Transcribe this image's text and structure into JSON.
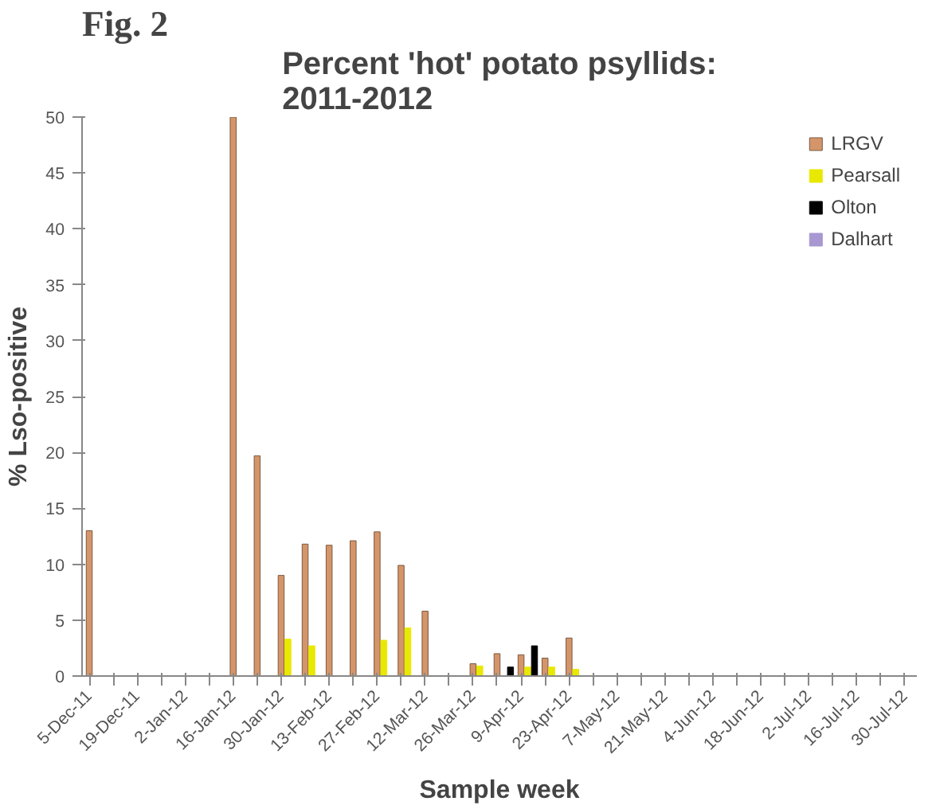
{
  "chart_data": {
    "type": "bar",
    "title": "Percent 'hot' potato psyllids:\n2011-2012",
    "xlabel": "Sample week",
    "ylabel": "% Lso-positive",
    "annotations": [
      "Fig. 2"
    ],
    "categories": [
      "5-Dec-11",
      null,
      "19-Dec-11",
      null,
      "2-Jan-12",
      null,
      "16-Jan-12",
      null,
      "30-Jan-12",
      null,
      "13-Feb-12",
      null,
      "27-Feb-12",
      null,
      "12-Mar-12",
      null,
      "26-Mar-12",
      null,
      "9-Apr-12",
      null,
      "23-Apr-12",
      null,
      "7-May-12",
      null,
      "21-May-12",
      null,
      "4-Jun-12",
      null,
      "18-Jun-12",
      null,
      "2-Jul-12",
      null,
      "16-Jul-12",
      null,
      "30-Jul-12"
    ],
    "series": [
      {
        "name": "LRGV",
        "color": "#d4956a",
        "values": [
          13,
          null,
          null,
          null,
          null,
          null,
          50,
          19.7,
          9,
          11.8,
          11.7,
          12.1,
          12.9,
          9.9,
          5.8,
          null,
          1.1,
          2,
          1.9,
          1.6,
          3.4,
          null,
          null,
          null,
          null,
          null,
          null,
          null,
          null,
          null,
          null,
          null,
          null,
          null,
          null
        ]
      },
      {
        "name": "Pearsall",
        "color": "#e8e800",
        "values": [
          null,
          null,
          null,
          null,
          null,
          null,
          null,
          null,
          3.3,
          2.7,
          null,
          null,
          3.2,
          4.3,
          null,
          null,
          0.9,
          null,
          0.8,
          0.8,
          0.6,
          null,
          null,
          null,
          null,
          null,
          null,
          null,
          null,
          null,
          null,
          null,
          null,
          null,
          null
        ]
      },
      {
        "name": "Olton",
        "color": "#000000",
        "values": [
          null,
          null,
          null,
          null,
          null,
          null,
          null,
          null,
          null,
          null,
          null,
          null,
          null,
          null,
          null,
          null,
          null,
          0.8,
          2.7,
          null,
          null,
          null,
          null,
          null,
          null,
          null,
          null,
          null,
          null,
          null,
          null,
          null,
          null,
          null,
          null
        ]
      },
      {
        "name": "Dalhart",
        "color": "#a897d0",
        "values": [
          null,
          null,
          null,
          null,
          null,
          null,
          null,
          null,
          null,
          null,
          null,
          null,
          null,
          null,
          null,
          null,
          null,
          null,
          null,
          null,
          null,
          null,
          null,
          null,
          null,
          null,
          null,
          null,
          null,
          null,
          null,
          null,
          null,
          null,
          null
        ]
      }
    ],
    "ylim": [
      0,
      50
    ],
    "yticks": [
      0,
      5,
      10,
      15,
      20,
      25,
      30,
      35,
      40,
      45,
      50
    ],
    "legend": "top right"
  }
}
